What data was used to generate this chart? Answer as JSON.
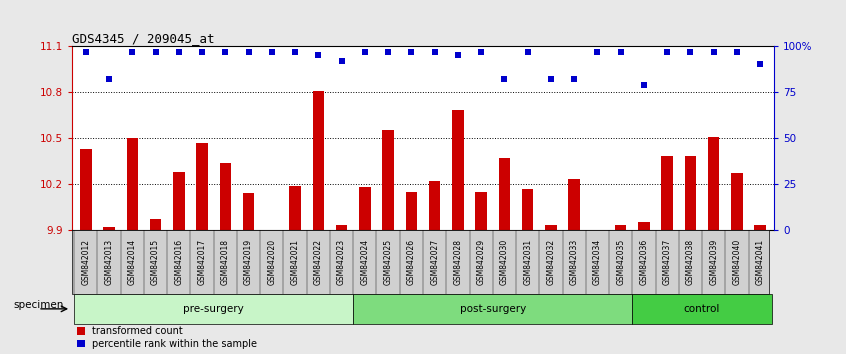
{
  "title": "GDS4345 / 209045_at",
  "samples": [
    "GSM842012",
    "GSM842013",
    "GSM842014",
    "GSM842015",
    "GSM842016",
    "GSM842017",
    "GSM842018",
    "GSM842019",
    "GSM842020",
    "GSM842021",
    "GSM842022",
    "GSM842023",
    "GSM842024",
    "GSM842025",
    "GSM842026",
    "GSM842027",
    "GSM842028",
    "GSM842029",
    "GSM842030",
    "GSM842031",
    "GSM842032",
    "GSM842033",
    "GSM842034",
    "GSM842035",
    "GSM842036",
    "GSM842037",
    "GSM842038",
    "GSM842039",
    "GSM842040",
    "GSM842041"
  ],
  "bar_values": [
    10.43,
    9.92,
    10.5,
    9.97,
    10.28,
    10.47,
    10.34,
    10.14,
    9.88,
    10.19,
    10.81,
    9.93,
    10.18,
    10.55,
    10.15,
    10.22,
    10.68,
    10.15,
    10.37,
    10.17,
    9.93,
    10.23,
    9.88,
    9.93,
    9.95,
    10.38,
    10.38,
    10.51,
    10.27,
    9.93
  ],
  "percentile_values": [
    97,
    82,
    97,
    97,
    97,
    97,
    97,
    97,
    97,
    97,
    95,
    92,
    97,
    97,
    97,
    97,
    95,
    97,
    82,
    97,
    82,
    82,
    97,
    97,
    79,
    97,
    97,
    97,
    97,
    90
  ],
  "groups": [
    {
      "label": "pre-surgery",
      "start": 0,
      "end": 12,
      "color": "#c8f5c8"
    },
    {
      "label": "post-surgery",
      "start": 12,
      "end": 24,
      "color": "#7edc7e"
    },
    {
      "label": "control",
      "start": 24,
      "end": 30,
      "color": "#44cc44"
    }
  ],
  "ylim_left": [
    9.9,
    11.1
  ],
  "yticks_left": [
    9.9,
    10.2,
    10.5,
    10.8,
    11.1
  ],
  "yticks_right": [
    0,
    25,
    50,
    75,
    100
  ],
  "bar_color": "#cc0000",
  "percentile_color": "#0000cc",
  "bar_width": 0.5,
  "bg_color": "#e8e8e8",
  "plot_bg_color": "#ffffff",
  "legend_items": [
    "transformed count",
    "percentile rank within the sample"
  ],
  "legend_colors": [
    "#cc0000",
    "#0000cc"
  ],
  "specimen_label": "specimen"
}
